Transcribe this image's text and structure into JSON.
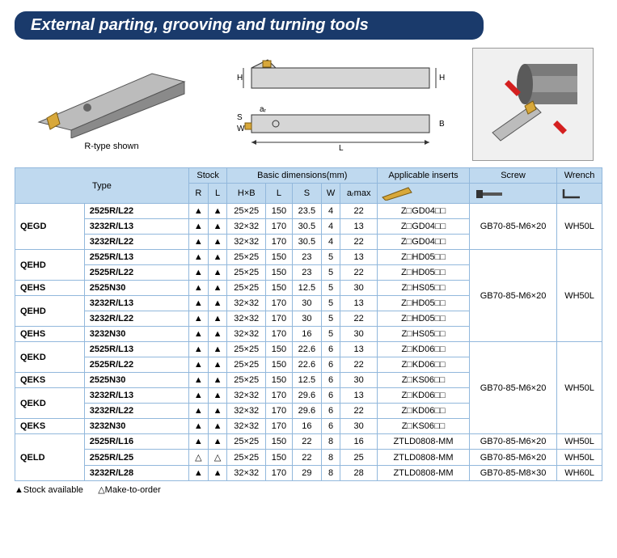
{
  "title": "External parting, grooving and turning tools",
  "caption_3d": "R-type shown",
  "header": {
    "type": "Type",
    "stock": "Stock",
    "basic": "Basic dimensions(mm)",
    "inserts": "Applicable inserts",
    "screw": "Screw",
    "wrench": "Wrench",
    "R": "R",
    "L": "L",
    "HxB": "H×B",
    "Lcol": "L",
    "S": "S",
    "W": "W",
    "armax": "aᵣmax"
  },
  "groups": [
    {
      "cat_rows": [
        {
          "label": "QEGD",
          "span": 3
        }
      ],
      "screw": "GB70-85-M6×20",
      "wrench": "WH50L",
      "rows": [
        {
          "type": "2525R/L22",
          "r": "▲",
          "l": "▲",
          "hxb": "25×25",
          "L": "150",
          "S": "23.5",
          "W": "4",
          "ar": "22",
          "ins": "Z□GD04□□"
        },
        {
          "type": "3232R/L13",
          "r": "▲",
          "l": "▲",
          "hxb": "32×32",
          "L": "170",
          "S": "30.5",
          "W": "4",
          "ar": "13",
          "ins": "Z□GD04□□"
        },
        {
          "type": "3232R/L22",
          "r": "▲",
          "l": "▲",
          "hxb": "32×32",
          "L": "170",
          "S": "30.5",
          "W": "4",
          "ar": "22",
          "ins": "Z□GD04□□"
        }
      ]
    },
    {
      "cat_rows": [
        {
          "label": "QEHD",
          "span": 2
        },
        {
          "label": "QEHS",
          "span": 1
        },
        {
          "label": "QEHD",
          "span": 2
        },
        {
          "label": "QEHS",
          "span": 1
        }
      ],
      "screw": "GB70-85-M6×20",
      "wrench": "WH50L",
      "rows": [
        {
          "type": "2525R/L13",
          "r": "▲",
          "l": "▲",
          "hxb": "25×25",
          "L": "150",
          "S": "23",
          "W": "5",
          "ar": "13",
          "ins": "Z□HD05□□"
        },
        {
          "type": "2525R/L22",
          "r": "▲",
          "l": "▲",
          "hxb": "25×25",
          "L": "150",
          "S": "23",
          "W": "5",
          "ar": "22",
          "ins": "Z□HD05□□"
        },
        {
          "type": "2525N30",
          "r": "▲",
          "l": "▲",
          "hxb": "25×25",
          "L": "150",
          "S": "12.5",
          "W": "5",
          "ar": "30",
          "ins": "Z□HS05□□"
        },
        {
          "type": "3232R/L13",
          "r": "▲",
          "l": "▲",
          "hxb": "32×32",
          "L": "170",
          "S": "30",
          "W": "5",
          "ar": "13",
          "ins": "Z□HD05□□"
        },
        {
          "type": "3232R/L22",
          "r": "▲",
          "l": "▲",
          "hxb": "32×32",
          "L": "170",
          "S": "30",
          "W": "5",
          "ar": "22",
          "ins": "Z□HD05□□"
        },
        {
          "type": "3232N30",
          "r": "▲",
          "l": "▲",
          "hxb": "32×32",
          "L": "170",
          "S": "16",
          "W": "5",
          "ar": "30",
          "ins": "Z□HS05□□"
        }
      ]
    },
    {
      "cat_rows": [
        {
          "label": "QEKD",
          "span": 2
        },
        {
          "label": "QEKS",
          "span": 1
        },
        {
          "label": "QEKD",
          "span": 2
        },
        {
          "label": "QEKS",
          "span": 1
        }
      ],
      "screw": "GB70-85-M6×20",
      "wrench": "WH50L",
      "rows": [
        {
          "type": "2525R/L13",
          "r": "▲",
          "l": "▲",
          "hxb": "25×25",
          "L": "150",
          "S": "22.6",
          "W": "6",
          "ar": "13",
          "ins": "Z□KD06□□"
        },
        {
          "type": "2525R/L22",
          "r": "▲",
          "l": "▲",
          "hxb": "25×25",
          "L": "150",
          "S": "22.6",
          "W": "6",
          "ar": "22",
          "ins": "Z□KD06□□"
        },
        {
          "type": "2525N30",
          "r": "▲",
          "l": "▲",
          "hxb": "25×25",
          "L": "150",
          "S": "12.5",
          "W": "6",
          "ar": "30",
          "ins": "Z□KS06□□"
        },
        {
          "type": "3232R/L13",
          "r": "▲",
          "l": "▲",
          "hxb": "32×32",
          "L": "170",
          "S": "29.6",
          "W": "6",
          "ar": "13",
          "ins": "Z□KD06□□"
        },
        {
          "type": "3232R/L22",
          "r": "▲",
          "l": "▲",
          "hxb": "32×32",
          "L": "170",
          "S": "29.6",
          "W": "6",
          "ar": "22",
          "ins": "Z□KD06□□"
        },
        {
          "type": "3232N30",
          "r": "▲",
          "l": "▲",
          "hxb": "32×32",
          "L": "170",
          "S": "16",
          "W": "6",
          "ar": "30",
          "ins": "Z□KS06□□"
        }
      ]
    },
    {
      "cat_rows": [
        {
          "label": "QELD",
          "span": 3
        }
      ],
      "per_row_screw": true,
      "rows": [
        {
          "type": "2525R/L16",
          "r": "▲",
          "l": "▲",
          "hxb": "25×25",
          "L": "150",
          "S": "22",
          "W": "8",
          "ar": "16",
          "ins": "ZTLD0808-MM",
          "screw": "GB70-85-M6×20",
          "wrench": "WH50L"
        },
        {
          "type": "2525R/L25",
          "r": "△",
          "l": "△",
          "hxb": "25×25",
          "L": "150",
          "S": "22",
          "W": "8",
          "ar": "25",
          "ins": "ZTLD0808-MM",
          "screw": "GB70-85-M6×20",
          "wrench": "WH50L"
        },
        {
          "type": "3232R/L28",
          "r": "▲",
          "l": "▲",
          "hxb": "32×32",
          "L": "170",
          "S": "29",
          "W": "8",
          "ar": "28",
          "ins": "ZTLD0808-MM",
          "screw": "GB70-85-M8×30",
          "wrench": "WH60L"
        }
      ]
    }
  ],
  "legend": {
    "filled": "▲Stock available",
    "open": "△Make-to-order"
  },
  "colors": {
    "header_bg": "#bfd9ef",
    "border": "#92b8dc",
    "title_bg": "#1a3a6b"
  },
  "diagram_labels": {
    "H": "H",
    "B": "B",
    "S": "S",
    "W": "W",
    "L": "L",
    "ar": "aᵣ"
  }
}
